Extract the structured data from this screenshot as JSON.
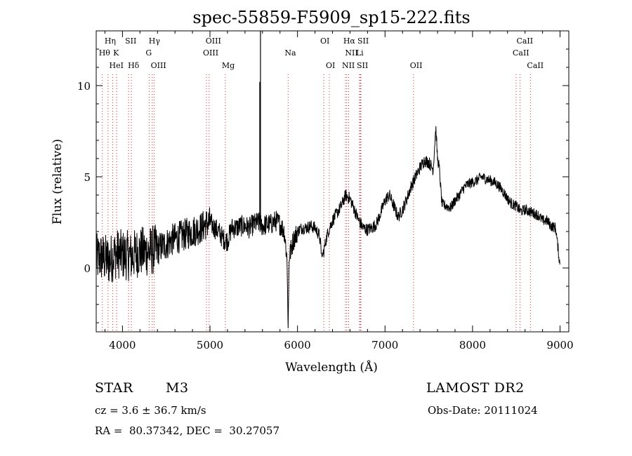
{
  "chart_data": {
    "type": "line",
    "title": "spec-55859-F5909_sp15-222.fits",
    "xlabel": "Wavelength (Å)",
    "ylabel": "Flux (relative)",
    "xlim": [
      3700,
      9100
    ],
    "ylim": [
      -3.5,
      13.0
    ],
    "xticks": [
      4000,
      5000,
      6000,
      7000,
      8000,
      9000
    ],
    "yticks": [
      0,
      5,
      10
    ],
    "grid": false,
    "series": [
      {
        "values": [
          [
            3700,
            0.5
          ],
          [
            3750,
            0.6
          ],
          [
            3800,
            0.5
          ],
          [
            3850,
            0.4
          ],
          [
            3900,
            0.7
          ],
          [
            3950,
            0.8
          ],
          [
            4000,
            0.7
          ],
          [
            4050,
            0.7
          ],
          [
            4100,
            0.6
          ],
          [
            4150,
            0.8
          ],
          [
            4200,
            0.9
          ],
          [
            4250,
            0.9
          ],
          [
            4300,
            0.9
          ],
          [
            4350,
            1.0
          ],
          [
            4400,
            1.0
          ],
          [
            4450,
            1.2
          ],
          [
            4500,
            1.3
          ],
          [
            4550,
            1.5
          ],
          [
            4600,
            1.6
          ],
          [
            4650,
            1.7
          ],
          [
            4700,
            1.8
          ],
          [
            4750,
            1.9
          ],
          [
            4800,
            2.0
          ],
          [
            4850,
            2.1
          ],
          [
            4900,
            2.2
          ],
          [
            4950,
            2.4
          ],
          [
            5000,
            2.5
          ],
          [
            5050,
            2.2
          ],
          [
            5100,
            2.0
          ],
          [
            5150,
            1.6
          ],
          [
            5200,
            1.5
          ],
          [
            5250,
            2.2
          ],
          [
            5300,
            2.2
          ],
          [
            5350,
            2.3
          ],
          [
            5400,
            2.3
          ],
          [
            5450,
            2.2
          ],
          [
            5500,
            2.4
          ],
          [
            5550,
            2.5
          ],
          [
            5600,
            2.3
          ],
          [
            5650,
            2.4
          ],
          [
            5700,
            2.4
          ],
          [
            5750,
            2.6
          ],
          [
            5800,
            2.4
          ],
          [
            5850,
            2.0
          ],
          [
            5880,
            0.5
          ],
          [
            5893,
            -3.3
          ],
          [
            5905,
            0.6
          ],
          [
            5950,
            1.5
          ],
          [
            6000,
            2.0
          ],
          [
            6050,
            2.2
          ],
          [
            6100,
            2.2
          ],
          [
            6150,
            2.3
          ],
          [
            6200,
            2.2
          ],
          [
            6250,
            1.8
          ],
          [
            6280,
            0.6
          ],
          [
            6300,
            0.9
          ],
          [
            6320,
            1.4
          ],
          [
            6350,
            2.0
          ],
          [
            6400,
            2.6
          ],
          [
            6450,
            3.0
          ],
          [
            6500,
            3.4
          ],
          [
            6550,
            4.0
          ],
          [
            6600,
            3.8
          ],
          [
            6650,
            3.2
          ],
          [
            6700,
            2.6
          ],
          [
            6750,
            2.2
          ],
          [
            6800,
            2.1
          ],
          [
            6850,
            2.2
          ],
          [
            6900,
            2.4
          ],
          [
            6950,
            3.0
          ],
          [
            7000,
            3.7
          ],
          [
            7050,
            4.0
          ],
          [
            7100,
            3.4
          ],
          [
            7150,
            2.8
          ],
          [
            7200,
            3.2
          ],
          [
            7250,
            3.8
          ],
          [
            7300,
            4.5
          ],
          [
            7350,
            5.0
          ],
          [
            7400,
            5.5
          ],
          [
            7450,
            5.9
          ],
          [
            7500,
            5.8
          ],
          [
            7550,
            5.4
          ],
          [
            7580,
            7.7
          ],
          [
            7600,
            6.0
          ],
          [
            7620,
            5.5
          ],
          [
            7650,
            3.5
          ],
          [
            7700,
            3.4
          ],
          [
            7750,
            3.3
          ],
          [
            7800,
            3.7
          ],
          [
            7850,
            4.0
          ],
          [
            7900,
            4.4
          ],
          [
            7950,
            4.6
          ],
          [
            8000,
            4.7
          ],
          [
            8050,
            4.8
          ],
          [
            8100,
            5.0
          ],
          [
            8150,
            4.9
          ],
          [
            8200,
            4.8
          ],
          [
            8250,
            4.7
          ],
          [
            8300,
            4.5
          ],
          [
            8350,
            4.2
          ],
          [
            8400,
            3.8
          ],
          [
            8450,
            3.5
          ],
          [
            8500,
            3.4
          ],
          [
            8550,
            3.1
          ],
          [
            8600,
            3.2
          ],
          [
            8650,
            3.1
          ],
          [
            8700,
            3.0
          ],
          [
            8750,
            2.9
          ],
          [
            8800,
            2.6
          ],
          [
            8850,
            2.6
          ],
          [
            8900,
            2.3
          ],
          [
            8950,
            2.2
          ],
          [
            9000,
            0.1
          ]
        ]
      }
    ],
    "annotations": {
      "sky_line": {
        "x": 5577,
        "top": 12.99,
        "bottom": 2.5
      },
      "lines_top": [
        {
          "label": "Hη",
          "x": 3835
        },
        {
          "label": "SII",
          "x": 4070
        },
        {
          "label": "Hγ",
          "x": 4340
        },
        {
          "label": "OIII",
          "x": 4990
        },
        {
          "label": "OI",
          "x": 6300
        },
        {
          "label": "Hα",
          "x": 6563
        },
        {
          "label": "SII",
          "x": 6725
        },
        {
          "label": "CaII",
          "x": 8542
        }
      ],
      "lines_mid": [
        {
          "label": "Hθ",
          "x": 3770
        },
        {
          "label": "K",
          "x": 3934
        },
        {
          "label": "G",
          "x": 4305
        },
        {
          "label": "OIII",
          "x": 4960
        },
        {
          "label": "Na",
          "x": 5893
        },
        {
          "label": "NII",
          "x": 6584
        },
        {
          "label": "Li",
          "x": 6708
        },
        {
          "label": "CaII",
          "x": 8498
        }
      ],
      "lines_low": [
        {
          "label": "HeI",
          "x": 3889
        },
        {
          "label": "Hδ",
          "x": 4102
        },
        {
          "label": "OIII",
          "x": 4363
        },
        {
          "label": "Mg",
          "x": 5175
        },
        {
          "label": "OI",
          "x": 6364
        },
        {
          "label": "NII",
          "x": 6548
        },
        {
          "label": "SII",
          "x": 6717
        },
        {
          "label": "OII",
          "x": 7325
        },
        {
          "label": "CaII",
          "x": 8662
        }
      ]
    }
  },
  "info": {
    "object_class": "STAR",
    "subclass": "M3",
    "survey": "LAMOST DR2",
    "cz": "cz = 3.6 ± 36.7 km/s",
    "obs_date": "Obs-Date: 20111024",
    "coords": "RA =  80.37342, DEC =  30.27057"
  }
}
